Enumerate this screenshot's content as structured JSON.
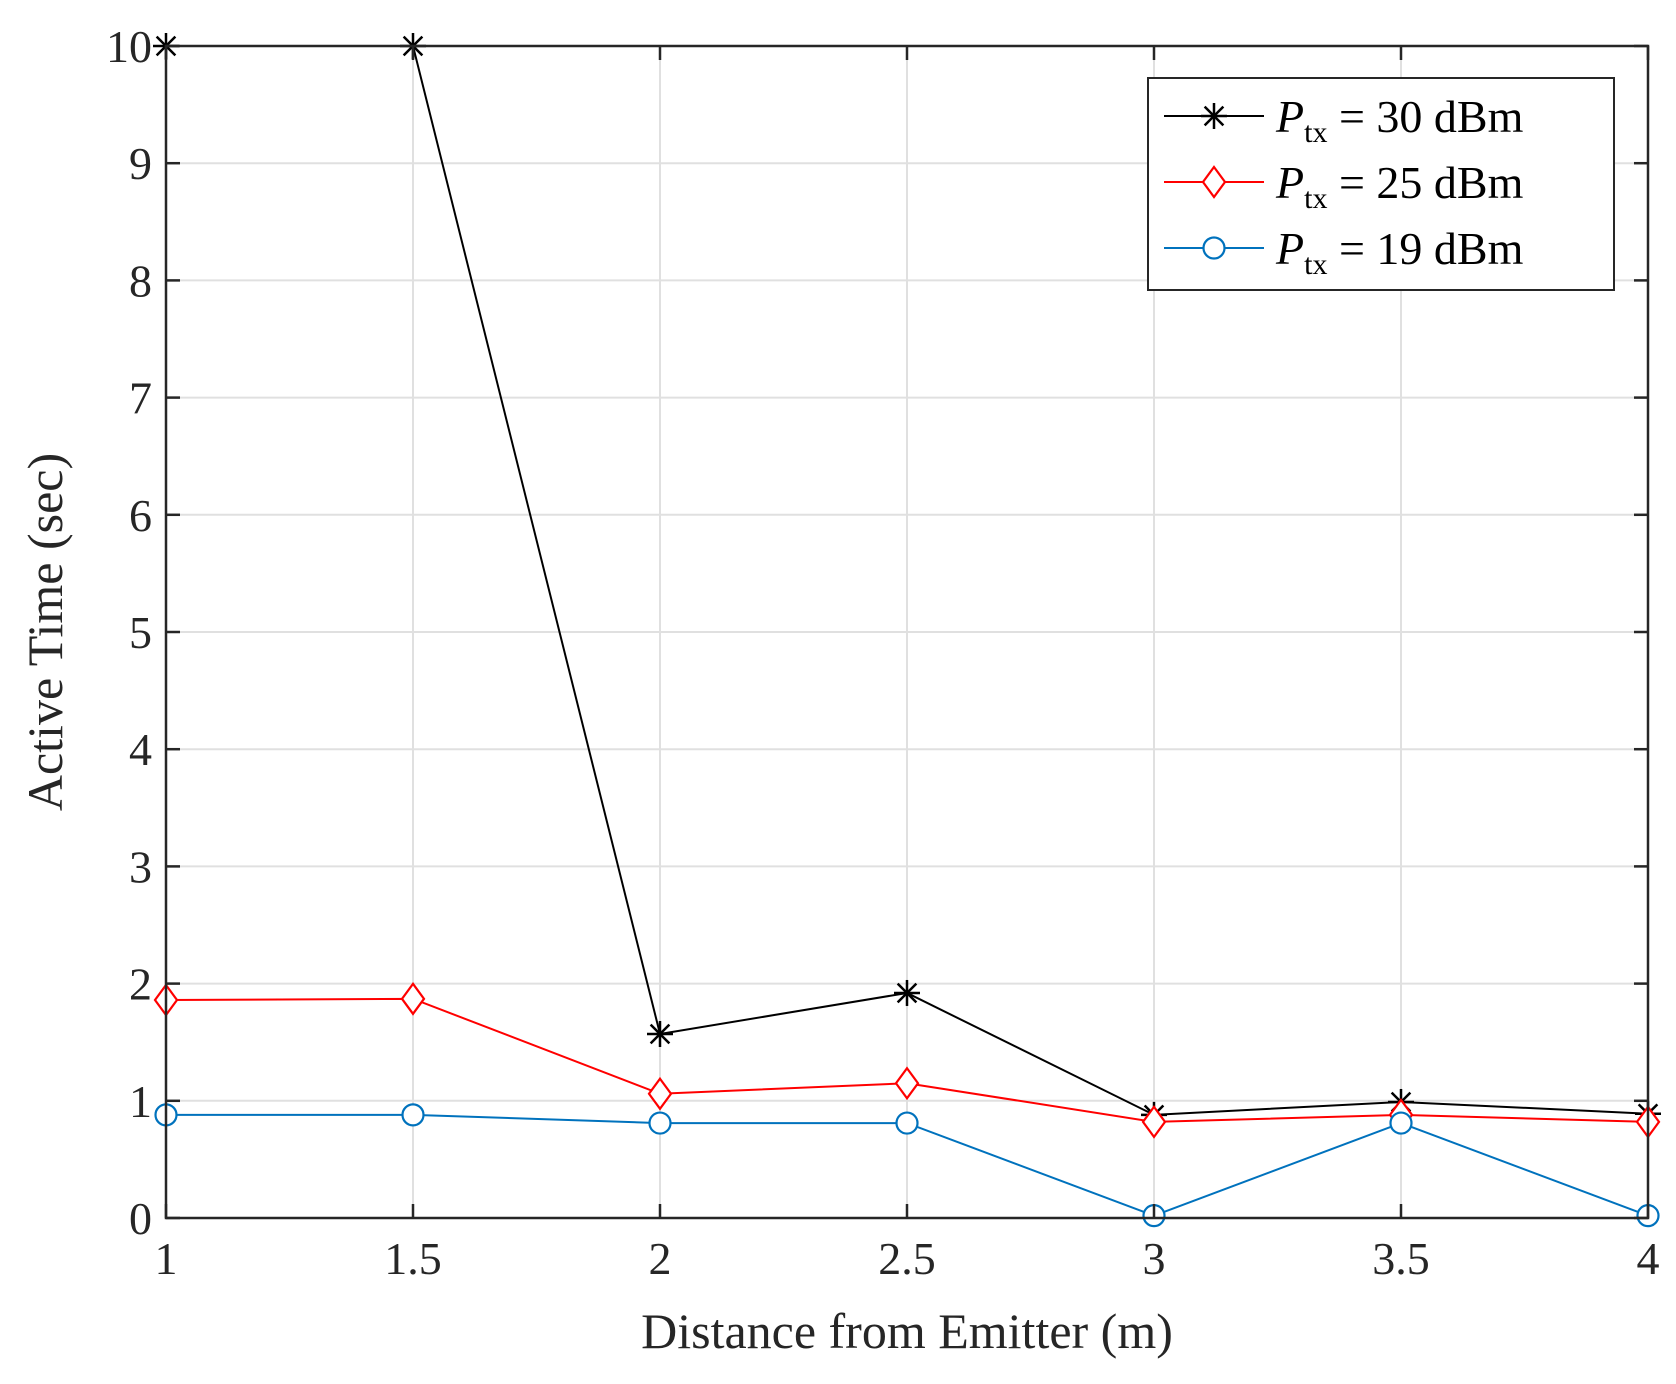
{
  "chart_data": {
    "type": "line",
    "title": "",
    "xlabel": "Distance from Emitter (m)",
    "ylabel": "Active Time (sec)",
    "x": [
      1,
      1.5,
      2,
      2.5,
      3,
      3.5,
      4
    ],
    "xlim": [
      1,
      4
    ],
    "ylim": [
      0,
      10
    ],
    "xticks": [
      "1",
      "1.5",
      "2",
      "2.5",
      "3",
      "3.5",
      "4"
    ],
    "yticks": [
      "0",
      "1",
      "2",
      "3",
      "4",
      "5",
      "6",
      "7",
      "8",
      "9",
      "10"
    ],
    "grid": true,
    "legend_position": "top-right",
    "series": [
      {
        "name": "P_tx = 30 dBm",
        "legend_main": "P",
        "legend_sub": "tx",
        "legend_rest": " = 30 dBm",
        "color": "#000000",
        "marker": "asterisk",
        "values": [
          10,
          10,
          1.57,
          1.92,
          0.88,
          0.99,
          0.89
        ]
      },
      {
        "name": "P_tx = 25 dBm",
        "legend_main": "P",
        "legend_sub": "tx",
        "legend_rest": " = 25 dBm",
        "color": "#ff0000",
        "marker": "diamond",
        "values": [
          1.86,
          1.87,
          1.06,
          1.15,
          0.82,
          0.88,
          0.82
        ]
      },
      {
        "name": "P_tx = 19 dBm",
        "legend_main": "P",
        "legend_sub": "tx",
        "legend_rest": " = 19 dBm",
        "color": "#0072bd",
        "marker": "circle",
        "values": [
          0.88,
          0.88,
          0.81,
          0.81,
          0.02,
          0.81,
          0.02
        ]
      }
    ]
  }
}
